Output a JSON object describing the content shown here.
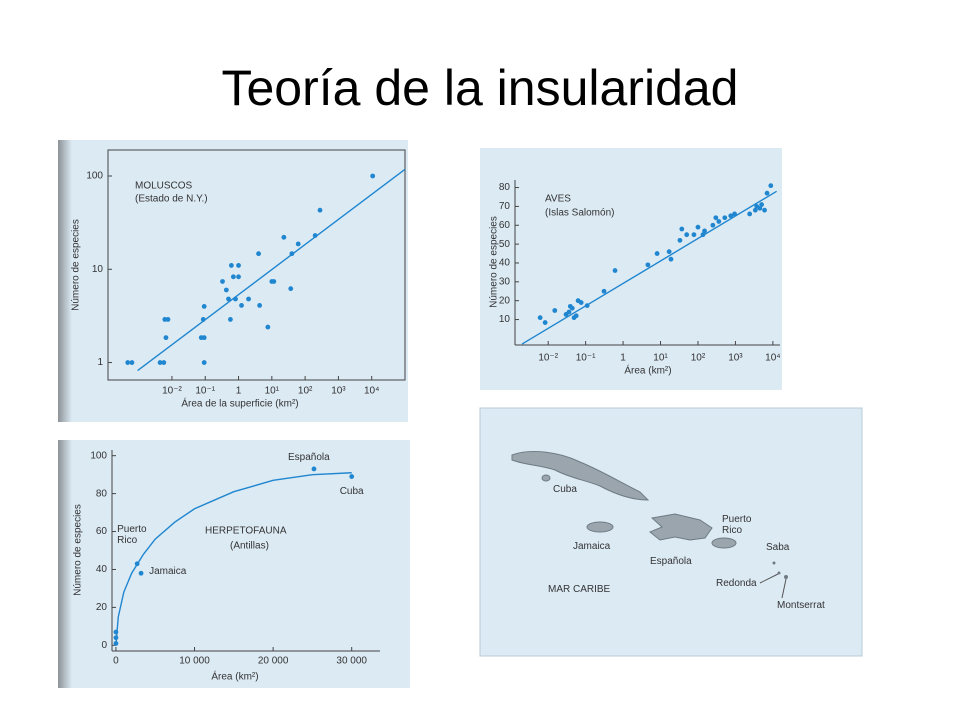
{
  "title": "Teoría de la insularidad",
  "chart_data": [
    {
      "type": "scatter",
      "title": "MOLUSCOS",
      "subtitle": "(Estado de N.Y.)",
      "x_label": "Área de la superficie (km²)",
      "y_label": "Número de especies",
      "xscale": "log",
      "yscale": "log",
      "color": "#1f86cf",
      "xlim": [
        0.00012,
        100000
      ],
      "ylim": [
        0.65,
        190
      ],
      "xticks": [
        {
          "value": 0.01,
          "label": "10⁻²"
        },
        {
          "value": 0.1,
          "label": "10⁻¹"
        },
        1,
        {
          "value": 10,
          "label": "10¹"
        },
        {
          "value": 100,
          "label": "10²"
        },
        {
          "value": 1000,
          "label": "10³"
        },
        {
          "value": 10000,
          "label": "10⁴"
        }
      ],
      "yticks": [
        1,
        10,
        100
      ],
      "x": [
        0.00047,
        0.00063,
        0.0044,
        0.0057,
        0.0061,
        0.0076,
        0.0066,
        0.076,
        0.093,
        0.087,
        0.093,
        0.093,
        0.33,
        0.43,
        0.5,
        0.61,
        0.81,
        0.7,
        1,
        1,
        0.57,
        1.23,
        2,
        4,
        4.3,
        7.6,
        10,
        11.5,
        23,
        37,
        40,
        62,
        200,
        280,
        10700
      ],
      "values": [
        1,
        1,
        1,
        1,
        2.9,
        2.9,
        1.85,
        1.85,
        1.85,
        2.9,
        4,
        1,
        7.4,
        6,
        4.8,
        11,
        4.8,
        8.3,
        11,
        8.3,
        2.9,
        4.1,
        4.8,
        14.7,
        4.1,
        2.4,
        7.4,
        7.4,
        22,
        6.2,
        14.7,
        18.7,
        23,
        43,
        100
      ],
      "fit": {
        "x": [
          0.00093,
          100000
        ],
        "values": [
          0.82,
          118
        ]
      }
    },
    {
      "type": "scatter",
      "title": "AVES",
      "subtitle": "(Islas Salomón)",
      "x_label": "Área (km²)",
      "y_label": "Número de especies",
      "xscale": "log",
      "yscale": "linear",
      "color": "#1f86cf",
      "xlim": [
        0.0013,
        15500
      ],
      "ylim": [
        -3.5,
        84
      ],
      "xticks": [
        {
          "value": 0.01,
          "label": "10⁻²"
        },
        {
          "value": 0.1,
          "label": "10⁻¹"
        },
        1,
        {
          "value": 10,
          "label": "10¹"
        },
        {
          "value": 100,
          "label": "10²"
        },
        {
          "value": 1000,
          "label": "10³"
        },
        {
          "value": 10000,
          "label": "10⁴"
        }
      ],
      "yticks": [
        10,
        20,
        30,
        40,
        50,
        60,
        70,
        80
      ],
      "x": [
        0.0061,
        0.0083,
        0.015,
        0.03,
        0.036,
        0.039,
        0.044,
        0.049,
        0.056,
        0.063,
        0.076,
        0.11,
        0.31,
        0.61,
        4.6,
        8.1,
        17,
        19,
        33,
        37,
        50,
        78,
        100,
        136,
        150,
        250,
        300,
        360,
        520,
        750,
        950,
        2400,
        3400,
        3700,
        4500,
        5000,
        6000,
        7000,
        8800
      ],
      "values": [
        11,
        8.4,
        14.8,
        12.7,
        14,
        17,
        16,
        11,
        12,
        20,
        19,
        17.4,
        25,
        36,
        39,
        45,
        46,
        42,
        52,
        58,
        55,
        55,
        59,
        55,
        57,
        60,
        64,
        62,
        64,
        65,
        66,
        66,
        68,
        70,
        69,
        71,
        68,
        77,
        81
      ],
      "fit": {
        "x": [
          0.002,
          12600
        ],
        "values": [
          -3,
          78
        ]
      }
    },
    {
      "type": "scatter",
      "title": "HERPETOFAUNA",
      "subtitle": "(Antillas)",
      "x_label": "Área (km²)",
      "y_label": "Número de especies",
      "xscale": "linear",
      "yscale": "linear",
      "color": "#1f86cf",
      "xlim": [
        -500,
        33600
      ],
      "ylim": [
        -3,
        103
      ],
      "xticks": [
        0,
        {
          "value": 10000,
          "label": "10 000"
        },
        {
          "value": 20000,
          "label": "20 000"
        },
        {
          "value": 30000,
          "label": "30 000"
        }
      ],
      "yticks": [
        0,
        20,
        40,
        60,
        80,
        100
      ],
      "x": [
        25200,
        30000,
        2700,
        3200,
        0,
        0,
        0
      ],
      "values": [
        93,
        89,
        43,
        38,
        1,
        4,
        7
      ],
      "point_labels": [
        "Española",
        "Cuba",
        "Puerto Rico",
        "Jamaica",
        null,
        null,
        null
      ],
      "fit": {
        "x": [
          0,
          300,
          1000,
          2000,
          3500,
          5000,
          7500,
          10000,
          15000,
          20000,
          25000,
          30000
        ],
        "values": [
          0,
          15,
          28,
          38,
          48,
          56,
          65,
          72,
          81,
          87,
          90,
          91
        ]
      }
    }
  ],
  "map": {
    "sea": "MAR CARIBE",
    "islands": [
      "Cuba",
      "Jamaica",
      "Española",
      "Puerto Rico",
      "Saba",
      "Redonda",
      "Montserrat"
    ]
  }
}
